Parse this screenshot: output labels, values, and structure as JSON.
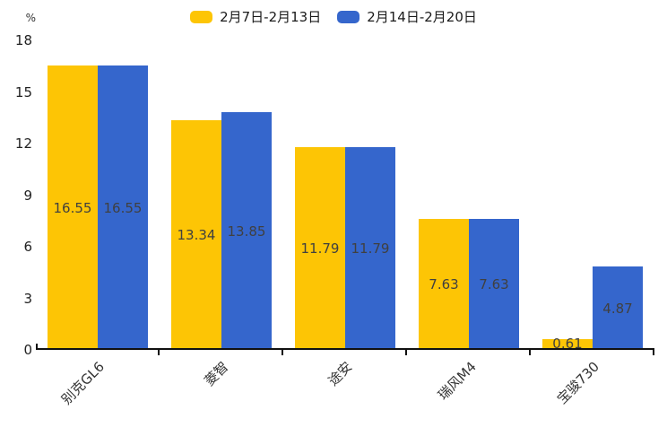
{
  "chart_data": {
    "type": "bar",
    "title": "",
    "xlabel": "",
    "ylabel": "%",
    "categories": [
      "别克GL6",
      "菱智",
      "途安",
      "瑞风M4",
      "宝骏730"
    ],
    "series": [
      {
        "name": "2月7日-2月13日",
        "color": "#FDC505",
        "values": [
          16.55,
          13.34,
          11.79,
          7.63,
          0.61
        ]
      },
      {
        "name": "2月14日-2月20日",
        "color": "#3566CC",
        "values": [
          16.55,
          13.85,
          11.79,
          7.63,
          4.87
        ]
      }
    ],
    "ylim": [
      0,
      18
    ],
    "yticks": [
      0,
      3,
      6,
      9,
      12,
      15,
      18
    ],
    "grid": false,
    "legend_position": "top-center",
    "x_label_rotation_deg": 45,
    "bar_value_label_color": "#404040",
    "axis_color": "#111111",
    "tick_label_color": "#222222",
    "background_color": "#ffffff"
  }
}
